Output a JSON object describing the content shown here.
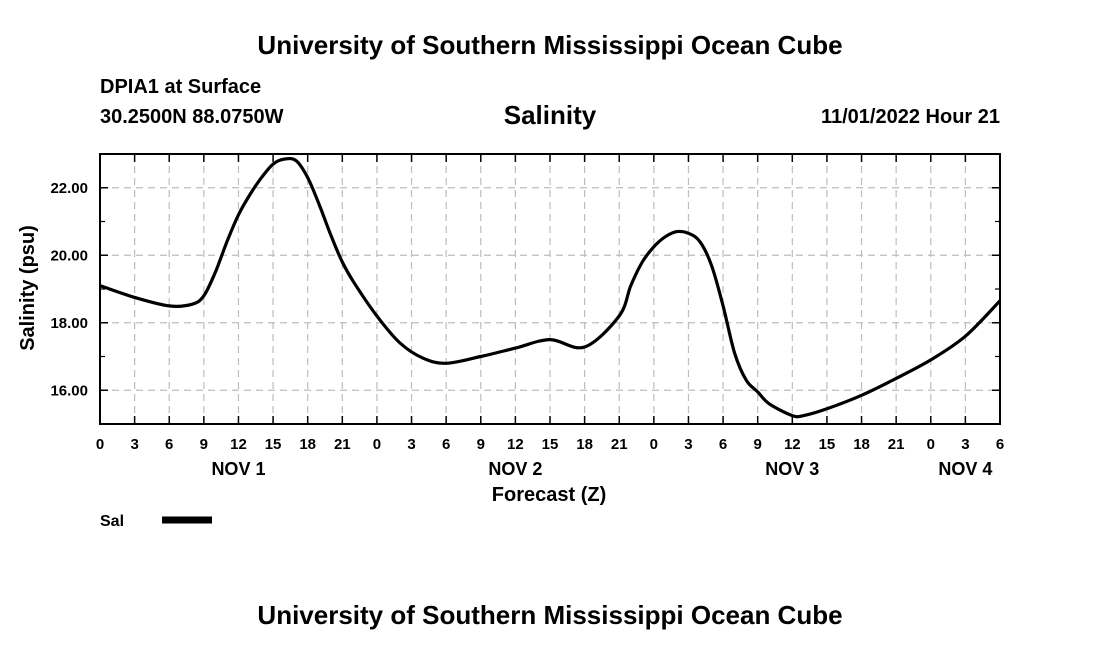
{
  "page": {
    "title_top": "University of Southern Mississippi Ocean Cube",
    "title_bottom": "University of Southern Mississippi Ocean Cube",
    "station": "DPIA1 at Surface",
    "coords": "30.2500N  88.0750W",
    "datetime": "11/01/2022 Hour 21"
  },
  "chart_data": {
    "type": "line",
    "title": "Salinity",
    "xlabel": "Forecast (Z)",
    "ylabel": "Salinity (psu)",
    "ylim": [
      15.0,
      23.0
    ],
    "xlim": [
      0,
      78
    ],
    "grid": true,
    "x_tick_labels": [
      "0",
      "3",
      "6",
      "9",
      "12",
      "15",
      "18",
      "21",
      "0",
      "3",
      "6",
      "9",
      "12",
      "15",
      "18",
      "21",
      "0",
      "3",
      "6",
      "9",
      "12",
      "15",
      "18",
      "21",
      "0",
      "3",
      "6"
    ],
    "y_tick_labels": [
      "16.00",
      "18.00",
      "20.00",
      "22.00"
    ],
    "y_tick_values": [
      16,
      18,
      20,
      22
    ],
    "day_labels": [
      {
        "label": "NOV 1",
        "hour": 12
      },
      {
        "label": "NOV 2",
        "hour": 36
      },
      {
        "label": "NOV 3",
        "hour": 60
      },
      {
        "label": "NOV 4",
        "hour": 75
      }
    ],
    "legend": [
      {
        "label": "Sal",
        "color": "#000000"
      }
    ],
    "series": [
      {
        "name": "Sal",
        "color": "#000000",
        "x": [
          0,
          3,
          6,
          8,
          9,
          10,
          11,
          12,
          13,
          14,
          15,
          16,
          17,
          18,
          19,
          20,
          21,
          22,
          24,
          26,
          28,
          30,
          33,
          36,
          39,
          42,
          45,
          46,
          47,
          48,
          49,
          50,
          51,
          52,
          53,
          54,
          55,
          56,
          57,
          58,
          60,
          61,
          63,
          66,
          69,
          72,
          75,
          78
        ],
        "y": [
          19.1,
          18.75,
          18.5,
          18.55,
          18.8,
          19.5,
          20.4,
          21.2,
          21.8,
          22.3,
          22.7,
          22.85,
          22.8,
          22.3,
          21.5,
          20.6,
          19.8,
          19.2,
          18.2,
          17.4,
          16.95,
          16.8,
          17.0,
          17.25,
          17.5,
          17.28,
          18.2,
          19.1,
          19.8,
          20.25,
          20.55,
          20.7,
          20.65,
          20.4,
          19.7,
          18.5,
          17.1,
          16.3,
          15.95,
          15.6,
          15.25,
          15.25,
          15.45,
          15.85,
          16.35,
          16.9,
          17.6,
          18.65
        ]
      }
    ]
  }
}
